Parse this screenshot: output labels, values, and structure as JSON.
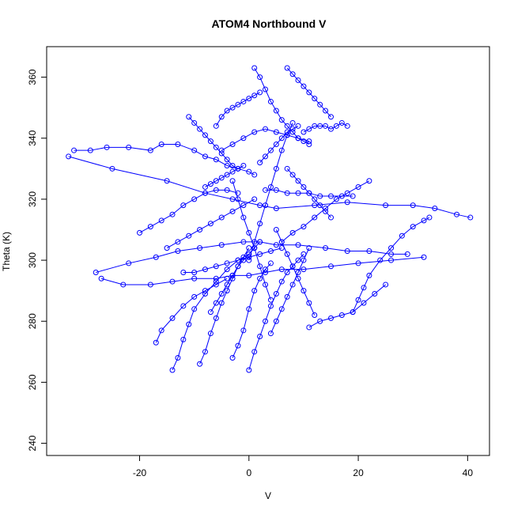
{
  "chart_data": {
    "type": "scatter",
    "title": "ATOM4 Northbound V",
    "xlabel": "V",
    "ylabel": "Theta (K)",
    "xlim": [
      -37,
      44
    ],
    "ylim": [
      236,
      370
    ],
    "xticks": [
      -20,
      0,
      20,
      40
    ],
    "yticks": [
      240,
      260,
      280,
      300,
      320,
      340,
      360
    ],
    "grid": false,
    "legend": "none",
    "marker": "open-circle",
    "connected": true,
    "color": "#0000ff",
    "series": [
      {
        "x": [
          -33,
          -25,
          -15,
          -8,
          -3,
          2,
          5,
          12,
          18,
          25,
          30,
          34,
          38,
          40.5
        ],
        "y": [
          334,
          330,
          326,
          322,
          320,
          318,
          317,
          318,
          319,
          318,
          318,
          317,
          315,
          314
        ]
      },
      {
        "x": [
          -28,
          -22,
          -17,
          -13,
          -9,
          -5,
          -1,
          2,
          5,
          9,
          14,
          18,
          22,
          26,
          29
        ],
        "y": [
          296,
          299,
          301,
          303,
          304,
          305,
          306,
          306,
          305,
          305,
          304,
          303,
          303,
          302,
          302
        ]
      },
      {
        "x": [
          -27,
          -23,
          -18,
          -14,
          -10,
          -6,
          -3,
          0,
          3,
          6,
          10,
          15,
          20,
          26,
          32
        ],
        "y": [
          294,
          292,
          292,
          293,
          294,
          294,
          295,
          295,
          296,
          297,
          297,
          298,
          299,
          300,
          301
        ]
      },
      {
        "x": [
          -32,
          -29,
          -26,
          -22,
          -18,
          -16,
          -13,
          -10,
          -8,
          -6,
          -4,
          -2,
          0,
          1
        ],
        "y": [
          336,
          336,
          337,
          337,
          336,
          338,
          338,
          336,
          334,
          333,
          331,
          330,
          329,
          328
        ]
      },
      {
        "x": [
          -14,
          -13,
          -12,
          -11,
          -10,
          -8,
          -6,
          -4,
          -2,
          0,
          1
        ],
        "y": [
          264,
          268,
          274,
          279,
          284,
          289,
          293,
          297,
          300,
          302,
          304
        ]
      },
      {
        "x": [
          -3,
          -2,
          -1,
          0,
          1,
          2,
          3,
          4
        ],
        "y": [
          268,
          272,
          277,
          284,
          290,
          294,
          297,
          299
        ]
      },
      {
        "x": [
          0,
          1,
          2,
          3,
          4,
          5,
          6,
          7,
          8,
          9,
          10
        ],
        "y": [
          264,
          270,
          275,
          280,
          285,
          289,
          293,
          296,
          298,
          300,
          302
        ]
      },
      {
        "x": [
          -9,
          -8,
          -7,
          -6,
          -5,
          -4,
          -3,
          -2,
          -1,
          0
        ],
        "y": [
          266,
          270,
          276,
          281,
          286,
          290,
          294,
          298,
          301,
          304
        ]
      },
      {
        "x": [
          1,
          2,
          3,
          4,
          5,
          6,
          7,
          8,
          9,
          10,
          11
        ],
        "y": [
          363,
          360,
          356,
          352,
          349,
          346,
          344,
          342,
          340,
          339,
          338
        ]
      },
      {
        "x": [
          7,
          8,
          9,
          10,
          11,
          12,
          13,
          14,
          15
        ],
        "y": [
          363,
          361,
          359,
          357,
          355,
          353,
          351,
          349,
          347
        ]
      },
      {
        "x": [
          10,
          11,
          12,
          13,
          14,
          15,
          16,
          17,
          18
        ],
        "y": [
          342,
          343,
          344,
          344,
          344,
          343,
          344,
          345,
          344
        ]
      },
      {
        "x": [
          -5,
          -3,
          -1,
          1,
          3,
          5,
          7,
          9,
          11
        ],
        "y": [
          336,
          338,
          340,
          342,
          343,
          342,
          341,
          340,
          339
        ]
      },
      {
        "x": [
          3,
          5,
          7,
          9,
          11,
          13,
          15,
          17,
          19
        ],
        "y": [
          323,
          323,
          322,
          322,
          322,
          321,
          321,
          321,
          321
        ]
      },
      {
        "x": [
          11,
          13,
          15,
          17,
          19,
          21,
          23,
          25
        ],
        "y": [
          278,
          280,
          281,
          282,
          283,
          286,
          289,
          292
        ]
      },
      {
        "x": [
          19,
          20,
          21,
          22,
          24,
          26,
          28,
          30,
          32,
          33
        ],
        "y": [
          283,
          287,
          291,
          295,
          300,
          304,
          308,
          311,
          313,
          314
        ]
      },
      {
        "x": [
          -17,
          -16,
          -14,
          -12,
          -10,
          -8,
          -6,
          -4
        ],
        "y": [
          273,
          277,
          281,
          285,
          288,
          290,
          292,
          294
        ]
      },
      {
        "x": [
          -20,
          -18,
          -16,
          -14,
          -12,
          -10,
          -8,
          -6,
          -4,
          -2
        ],
        "y": [
          309,
          311,
          313,
          315,
          318,
          320,
          322,
          323,
          323,
          322
        ]
      },
      {
        "x": [
          -11,
          -10,
          -9,
          -8,
          -7,
          -6,
          -5,
          -4,
          -3,
          -2
        ],
        "y": [
          347,
          345,
          343,
          341,
          339,
          337,
          335,
          333,
          331,
          330
        ]
      },
      {
        "x": [
          -6,
          -5,
          -4,
          -3,
          -2,
          -1,
          0,
          1,
          2
        ],
        "y": [
          344,
          347,
          349,
          350,
          351,
          352,
          353,
          354,
          355
        ]
      },
      {
        "x": [
          0,
          1,
          2,
          3,
          4,
          5,
          6,
          7,
          8
        ],
        "y": [
          300,
          306,
          312,
          318,
          324,
          330,
          336,
          341,
          345
        ]
      },
      {
        "x": [
          -3,
          -2,
          -1,
          0,
          1,
          2,
          3,
          4
        ],
        "y": [
          326,
          320,
          314,
          309,
          304,
          298,
          292,
          287
        ]
      },
      {
        "x": [
          5,
          6,
          7,
          8,
          9,
          10,
          11,
          12
        ],
        "y": [
          310,
          306,
          302,
          298,
          294,
          290,
          286,
          282
        ]
      },
      {
        "x": [
          6,
          8,
          10,
          12,
          14,
          16,
          18,
          20,
          22
        ],
        "y": [
          306,
          309,
          311,
          314,
          317,
          320,
          322,
          324,
          326
        ]
      },
      {
        "x": [
          -15,
          -13,
          -11,
          -9,
          -7,
          -5,
          -3,
          -1,
          1
        ],
        "y": [
          304,
          306,
          308,
          310,
          312,
          314,
          316,
          318,
          320
        ]
      },
      {
        "x": [
          -12,
          -10,
          -8,
          -6,
          -4,
          -2,
          0,
          2,
          4,
          6
        ],
        "y": [
          296,
          296,
          297,
          298,
          299,
          300,
          301,
          302,
          303,
          304
        ]
      },
      {
        "x": [
          4,
          5,
          6,
          7,
          8,
          9,
          10,
          11
        ],
        "y": [
          276,
          280,
          284,
          288,
          292,
          296,
          300,
          304
        ]
      },
      {
        "x": [
          -7,
          -6,
          -5,
          -4,
          -3,
          -2,
          -1,
          0,
          1,
          2
        ],
        "y": [
          283,
          286,
          289,
          292,
          295,
          298,
          300,
          302,
          304,
          306
        ]
      },
      {
        "x": [
          2,
          3,
          4,
          5,
          6,
          7,
          8,
          9
        ],
        "y": [
          332,
          334,
          336,
          338,
          340,
          342,
          343,
          344
        ]
      },
      {
        "x": [
          -8,
          -7,
          -6,
          -5,
          -4,
          -3,
          -2,
          -1
        ],
        "y": [
          324,
          325,
          326,
          327,
          328,
          329,
          330,
          331
        ]
      },
      {
        "x": [
          7,
          8,
          9,
          10,
          11,
          12,
          13,
          14,
          15
        ],
        "y": [
          330,
          328,
          326,
          324,
          322,
          320,
          318,
          316,
          314
        ]
      }
    ]
  }
}
